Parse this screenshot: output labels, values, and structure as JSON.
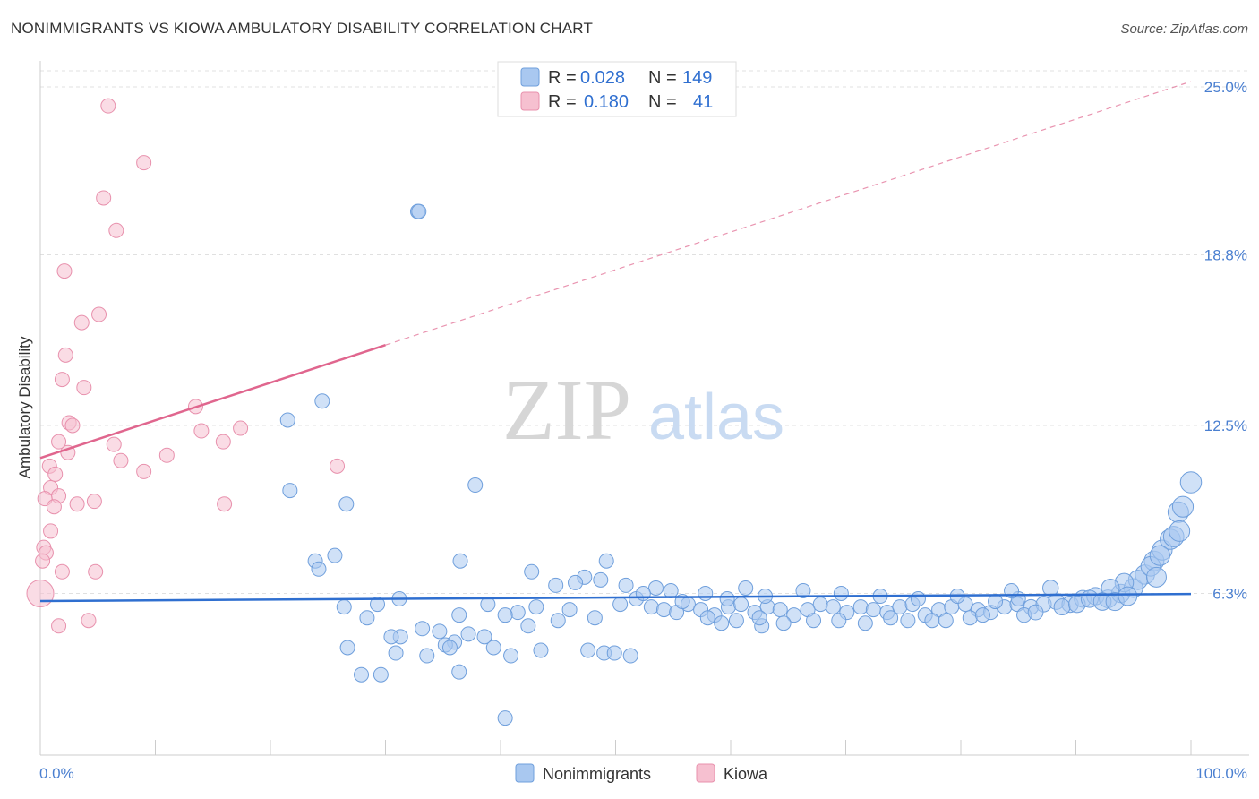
{
  "title": "NONIMMIGRANTS VS KIOWA AMBULATORY DISABILITY CORRELATION CHART",
  "source": "Source: ZipAtlas.com",
  "watermark": {
    "zip": "ZIP",
    "atlas": "atlas"
  },
  "colors": {
    "blue_fill": "#a9c8f0",
    "blue_stroke": "#6f9fdc",
    "blue_line": "#2f6fd0",
    "pink_fill": "#f6c0d0",
    "pink_stroke": "#e891ad",
    "pink_line": "#e0668e",
    "grid": "#e0e0e0",
    "axis_label": "#4a7fd0"
  },
  "legend": {
    "rows": [
      {
        "r_label": "R = ",
        "r_value": "0.028",
        "n_label": "N = ",
        "n_value": "149"
      },
      {
        "r_label": "R = ",
        "r_value": "0.180",
        "n_label": "N = ",
        "n_value": "41"
      }
    ]
  },
  "bottom_legend": [
    "Nonimmigrants",
    "Kiowa"
  ],
  "chart_data": {
    "type": "scatter",
    "title": "NONIMMIGRANTS VS KIOWA AMBULATORY DISABILITY CORRELATION CHART",
    "xlabel": "",
    "ylabel": "Ambulatory Disability",
    "xlim": [
      0,
      100
    ],
    "ylim": [
      0,
      25
    ],
    "x_tick_labels": [
      "0.0%",
      "100.0%"
    ],
    "y_ticks": [
      6.3,
      12.5,
      18.8,
      25.0
    ],
    "y_tick_labels": [
      "6.3%",
      "12.5%",
      "18.8%",
      "25.0%"
    ],
    "grid": true,
    "legend_position": "top-center",
    "series": [
      {
        "name": "Nonimmigrants",
        "r": 0.028,
        "n": 149,
        "trend": {
          "x": [
            0,
            100
          ],
          "y": [
            6.02,
            6.28
          ],
          "dashed_from": null
        },
        "points": [
          [
            32.8,
            20.4
          ],
          [
            32.9,
            20.4
          ],
          [
            24.5,
            13.4
          ],
          [
            21.5,
            12.7
          ],
          [
            21.7,
            10.1
          ],
          [
            26.6,
            9.6
          ],
          [
            37.8,
            10.3
          ],
          [
            25.6,
            7.7
          ],
          [
            23.9,
            7.5
          ],
          [
            24.2,
            7.2
          ],
          [
            36.5,
            7.5
          ],
          [
            49.2,
            7.5
          ],
          [
            42.7,
            7.1
          ],
          [
            31.2,
            6.1
          ],
          [
            29.3,
            5.9
          ],
          [
            26.4,
            5.8
          ],
          [
            38.9,
            5.9
          ],
          [
            43.1,
            5.8
          ],
          [
            46.0,
            5.7
          ],
          [
            41.5,
            5.6
          ],
          [
            40.4,
            5.5
          ],
          [
            36.4,
            5.5
          ],
          [
            28.4,
            5.4
          ],
          [
            45.0,
            5.3
          ],
          [
            33.2,
            5.0
          ],
          [
            34.7,
            4.9
          ],
          [
            37.2,
            4.8
          ],
          [
            31.3,
            4.7
          ],
          [
            30.5,
            4.7
          ],
          [
            36.0,
            4.5
          ],
          [
            35.2,
            4.4
          ],
          [
            26.7,
            4.3
          ],
          [
            39.4,
            4.3
          ],
          [
            43.5,
            4.2
          ],
          [
            47.6,
            4.2
          ],
          [
            49.0,
            4.1
          ],
          [
            49.9,
            4.1
          ],
          [
            51.3,
            4.0
          ],
          [
            40.9,
            4.0
          ],
          [
            36.4,
            3.4
          ],
          [
            29.6,
            3.3
          ],
          [
            40.4,
            1.7
          ],
          [
            50.4,
            5.9
          ],
          [
            51.8,
            6.1
          ],
          [
            53.1,
            5.8
          ],
          [
            54.2,
            5.7
          ],
          [
            55.3,
            5.6
          ],
          [
            56.3,
            5.9
          ],
          [
            57.4,
            5.7
          ],
          [
            58.6,
            5.5
          ],
          [
            59.8,
            5.8
          ],
          [
            60.9,
            5.9
          ],
          [
            62.1,
            5.6
          ],
          [
            63.2,
            5.8
          ],
          [
            64.3,
            5.7
          ],
          [
            65.5,
            5.5
          ],
          [
            66.7,
            5.7
          ],
          [
            67.8,
            5.9
          ],
          [
            68.9,
            5.8
          ],
          [
            70.1,
            5.6
          ],
          [
            71.3,
            5.8
          ],
          [
            72.4,
            5.7
          ],
          [
            73.6,
            5.6
          ],
          [
            74.7,
            5.8
          ],
          [
            75.8,
            5.9
          ],
          [
            76.9,
            5.5
          ],
          [
            78.1,
            5.7
          ],
          [
            79.2,
            5.8
          ],
          [
            80.4,
            5.9
          ],
          [
            81.5,
            5.7
          ],
          [
            82.6,
            5.6
          ],
          [
            83.8,
            5.8
          ],
          [
            84.9,
            5.9
          ],
          [
            86.1,
            5.8
          ],
          [
            87.2,
            5.9
          ],
          [
            88.3,
            6.0
          ],
          [
            89.5,
            5.9
          ],
          [
            90.6,
            6.1
          ],
          [
            91.7,
            6.2
          ],
          [
            92.8,
            6.1
          ],
          [
            93.9,
            6.3
          ],
          [
            95.0,
            6.5
          ],
          [
            96.0,
            7.0
          ],
          [
            96.8,
            7.5
          ],
          [
            97.5,
            7.9
          ],
          [
            98.2,
            8.3
          ],
          [
            98.9,
            9.3
          ],
          [
            100.0,
            10.4
          ],
          [
            99.3,
            9.5
          ],
          [
            95.4,
            6.8
          ],
          [
            94.2,
            6.7
          ],
          [
            93.0,
            6.5
          ],
          [
            85.0,
            6.1
          ],
          [
            83.0,
            6.0
          ],
          [
            79.7,
            6.2
          ],
          [
            76.3,
            6.1
          ],
          [
            73.0,
            6.2
          ],
          [
            69.6,
            6.3
          ],
          [
            66.3,
            6.4
          ],
          [
            63.0,
            6.2
          ],
          [
            61.3,
            6.5
          ],
          [
            59.7,
            6.1
          ],
          [
            57.8,
            6.3
          ],
          [
            54.8,
            6.4
          ],
          [
            53.5,
            6.5
          ],
          [
            50.9,
            6.6
          ],
          [
            48.7,
            6.8
          ],
          [
            47.3,
            6.9
          ],
          [
            46.5,
            6.7
          ],
          [
            44.8,
            6.6
          ],
          [
            52.4,
            6.3
          ],
          [
            55.8,
            6.0
          ],
          [
            58.0,
            5.4
          ],
          [
            59.2,
            5.2
          ],
          [
            60.5,
            5.3
          ],
          [
            62.7,
            5.1
          ],
          [
            64.6,
            5.2
          ],
          [
            67.2,
            5.3
          ],
          [
            69.4,
            5.3
          ],
          [
            71.7,
            5.2
          ],
          [
            73.9,
            5.4
          ],
          [
            75.4,
            5.3
          ],
          [
            77.5,
            5.3
          ],
          [
            78.7,
            5.3
          ],
          [
            80.8,
            5.4
          ],
          [
            81.9,
            5.5
          ],
          [
            85.5,
            5.5
          ],
          [
            86.5,
            5.6
          ],
          [
            88.8,
            5.8
          ],
          [
            90.1,
            5.9
          ],
          [
            91.2,
            6.1
          ],
          [
            92.3,
            6.0
          ],
          [
            93.4,
            6.0
          ],
          [
            94.5,
            6.2
          ],
          [
            96.5,
            7.3
          ],
          [
            97.3,
            7.7
          ],
          [
            98.5,
            8.4
          ],
          [
            99.0,
            8.6
          ],
          [
            97.0,
            6.9
          ],
          [
            84.4,
            6.4
          ],
          [
            87.8,
            6.5
          ],
          [
            62.5,
            5.4
          ],
          [
            48.2,
            5.4
          ],
          [
            42.4,
            5.1
          ],
          [
            38.6,
            4.7
          ],
          [
            35.6,
            4.3
          ],
          [
            33.6,
            4.0
          ],
          [
            30.9,
            4.1
          ],
          [
            27.9,
            3.3
          ]
        ]
      },
      {
        "name": "Kiowa",
        "r": 0.18,
        "n": 41,
        "trend": {
          "x": [
            0,
            100
          ],
          "y": [
            11.3,
            25.2
          ],
          "dashed_from": 30
        },
        "points": [
          [
            5.9,
            24.3
          ],
          [
            9.0,
            22.2
          ],
          [
            5.5,
            20.9
          ],
          [
            6.6,
            19.7
          ],
          [
            2.1,
            18.2
          ],
          [
            5.1,
            16.6
          ],
          [
            3.6,
            16.3
          ],
          [
            2.2,
            15.1
          ],
          [
            1.9,
            14.2
          ],
          [
            3.8,
            13.9
          ],
          [
            13.5,
            13.2
          ],
          [
            2.5,
            12.6
          ],
          [
            2.8,
            12.5
          ],
          [
            14.0,
            12.3
          ],
          [
            17.4,
            12.4
          ],
          [
            15.9,
            11.9
          ],
          [
            1.6,
            11.9
          ],
          [
            6.4,
            11.8
          ],
          [
            2.4,
            11.5
          ],
          [
            11.0,
            11.4
          ],
          [
            7.0,
            11.2
          ],
          [
            0.8,
            11.0
          ],
          [
            25.8,
            11.0
          ],
          [
            9.0,
            10.8
          ],
          [
            1.3,
            10.7
          ],
          [
            0.9,
            10.2
          ],
          [
            1.6,
            9.9
          ],
          [
            0.4,
            9.8
          ],
          [
            4.7,
            9.7
          ],
          [
            3.2,
            9.6
          ],
          [
            1.2,
            9.5
          ],
          [
            16.0,
            9.6
          ],
          [
            0.9,
            8.6
          ],
          [
            0.3,
            8.0
          ],
          [
            0.5,
            7.8
          ],
          [
            0.2,
            7.5
          ],
          [
            1.9,
            7.1
          ],
          [
            4.8,
            7.1
          ],
          [
            0.0,
            6.3
          ],
          [
            4.2,
            5.3
          ],
          [
            1.6,
            5.1
          ]
        ]
      }
    ]
  }
}
